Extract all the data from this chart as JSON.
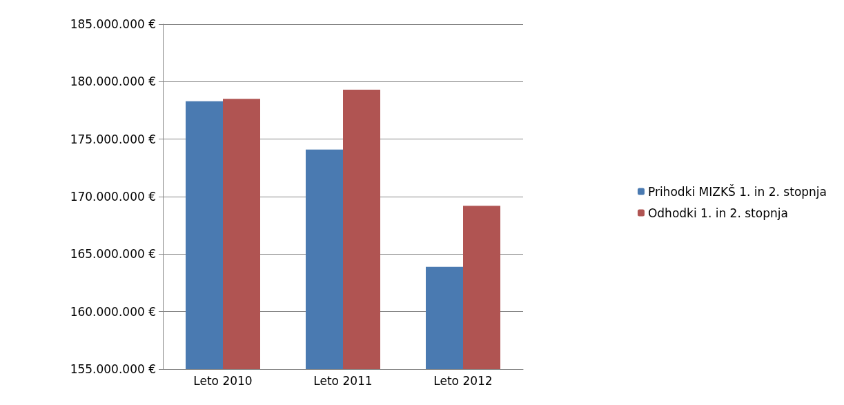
{
  "chart_data": {
    "type": "bar",
    "categories": [
      "Leto 2010",
      "Leto 2011",
      "Leto 2012"
    ],
    "series": [
      {
        "name": "Prihodki MIZKŠ 1. in 2. stopnja",
        "color": "#4a7ab1",
        "values": [
          178300000,
          174100000,
          163900000
        ]
      },
      {
        "name": "Odhodki 1. in 2. stopnja",
        "color": "#b05452",
        "values": [
          178500000,
          179300000,
          169200000
        ]
      }
    ],
    "ylim": [
      155000000,
      185000000
    ],
    "yticks": [
      {
        "value": 155000000,
        "label": "155.000.000 €"
      },
      {
        "value": 160000000,
        "label": "160.000.000 €"
      },
      {
        "value": 165000000,
        "label": "165.000.000 €"
      },
      {
        "value": 170000000,
        "label": "170.000.000 €"
      },
      {
        "value": 175000000,
        "label": "175.000.000 €"
      },
      {
        "value": 180000000,
        "label": "180.000.000 €"
      },
      {
        "value": 185000000,
        "label": "185.000.000 €"
      }
    ],
    "grid": "y",
    "legend": "right"
  }
}
